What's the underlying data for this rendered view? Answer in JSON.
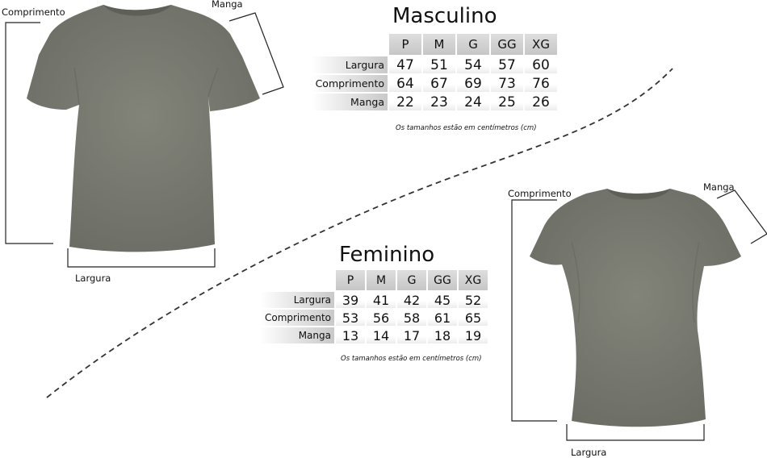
{
  "men": {
    "title": "Masculino",
    "sizes": [
      "P",
      "M",
      "G",
      "GG",
      "XG"
    ],
    "rows": [
      {
        "label": "Largura",
        "values": [
          "47",
          "51",
          "54",
          "57",
          "60"
        ]
      },
      {
        "label": "Comprimento",
        "values": [
          "64",
          "67",
          "69",
          "73",
          "76"
        ]
      },
      {
        "label": "Manga",
        "values": [
          "22",
          "23",
          "24",
          "25",
          "26"
        ]
      }
    ],
    "note": "Os tamanhos estão em centímetros (cm)",
    "labels": {
      "length": "Comprimento",
      "sleeve": "Manga",
      "width": "Largura"
    }
  },
  "women": {
    "title": "Feminino",
    "sizes": [
      "P",
      "M",
      "G",
      "GG",
      "XG"
    ],
    "rows": [
      {
        "label": "Largura",
        "values": [
          "39",
          "41",
          "42",
          "45",
          "52"
        ]
      },
      {
        "label": "Comprimento",
        "values": [
          "53",
          "56",
          "58",
          "61",
          "65"
        ]
      },
      {
        "label": "Manga",
        "values": [
          "13",
          "14",
          "17",
          "18",
          "19"
        ]
      }
    ],
    "note": "Os tamanhos estão em centímetros (cm)",
    "labels": {
      "length": "Comprimento",
      "sleeve": "Manga",
      "width": "Largura"
    }
  },
  "colors": {
    "shirt": "#77796f",
    "shirt_dark": "#64665d",
    "line": "#222222"
  }
}
